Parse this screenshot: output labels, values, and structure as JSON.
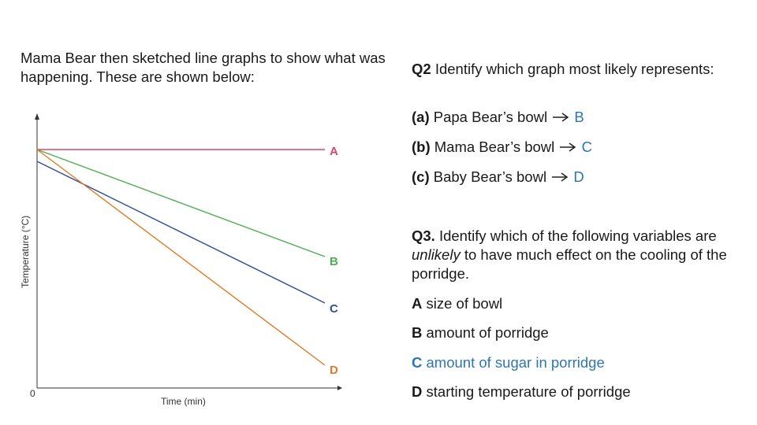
{
  "intro_text": "Mama Bear then sketched line graphs to show what was happening. These are shown below:",
  "graph": {
    "y_axis_label": "Temperature (°C)",
    "x_axis_label": "Time (min)",
    "origin_label": "0",
    "line_labels": [
      "A",
      "B",
      "C",
      "D"
    ],
    "colors": {
      "A": "#d9466a",
      "B": "#4caf50",
      "C": "#2f4f9a",
      "D": "#e07b24"
    }
  },
  "q2": {
    "number": "Q2",
    "text": "Identify which graph most likely represents:",
    "items": [
      {
        "tag": "(a)",
        "text": "Papa Bear’s bowl",
        "answer": "B"
      },
      {
        "tag": "(b)",
        "text": "Mama Bear’s bowl",
        "answer": "C"
      },
      {
        "tag": "(c)",
        "text": "Baby Bear’s bowl",
        "answer": "D"
      }
    ]
  },
  "q3": {
    "number": "Q3.",
    "text_before": "Identify which of the following variables are",
    "emphasis": "unlikely",
    "text_after": "to have much effect on the cooling of the porridge.",
    "options": [
      {
        "letter": "A",
        "text": "size of bowl",
        "highlight": false
      },
      {
        "letter": "B",
        "text": "amount of porridge",
        "highlight": false
      },
      {
        "letter": "C",
        "text": "amount of sugar in porridge",
        "highlight": true
      },
      {
        "letter": "D",
        "text": "starting temperature of porridge",
        "highlight": false
      }
    ]
  },
  "accent_color": "#2e75b6"
}
